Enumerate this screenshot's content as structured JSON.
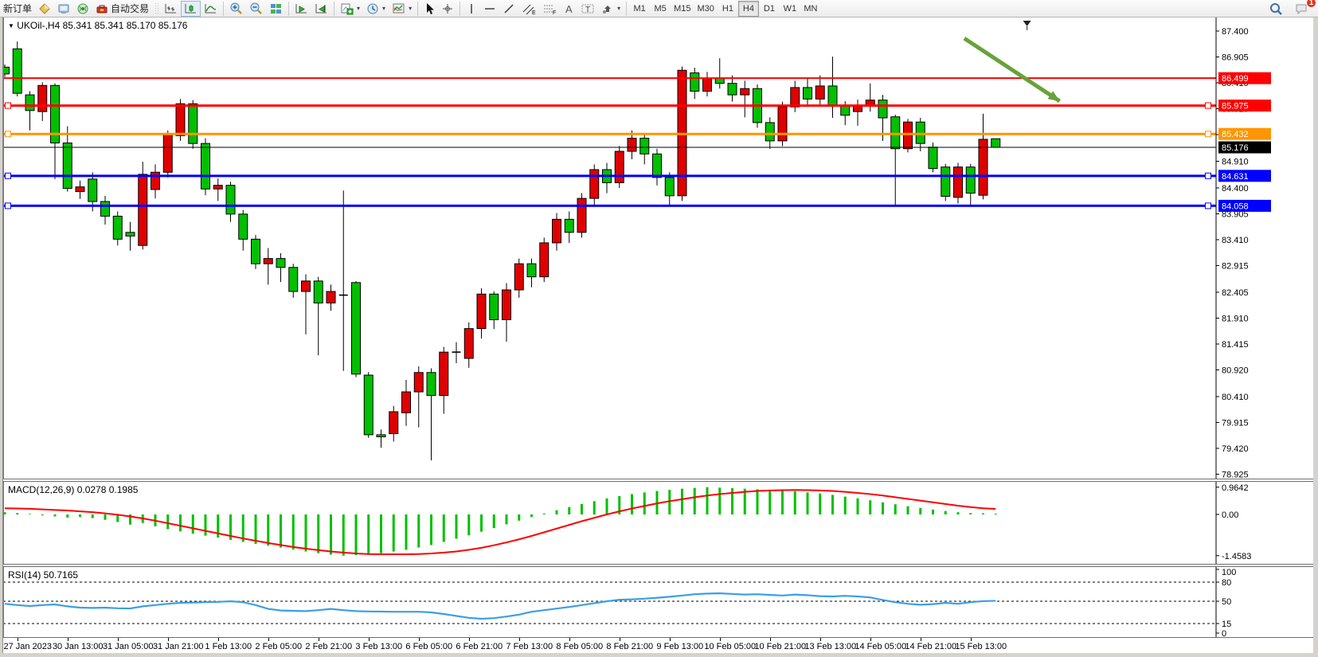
{
  "toolbar": {
    "new_order_label": "新订单",
    "auto_trading_label": "自动交易",
    "timeframes": [
      "M1",
      "M5",
      "M15",
      "M30",
      "H1",
      "H4",
      "D1",
      "W1",
      "MN"
    ],
    "active_timeframe": "H4",
    "notification_count": "1",
    "icons": [
      "diamond-icon",
      "terminal-icon",
      "signal-icon",
      "toolbox-icon",
      "bar-chart-icon",
      "candlestick-icon",
      "line-chart-icon",
      "zoom-in-icon",
      "zoom-out-icon",
      "tile-windows-icon",
      "profile-left-icon",
      "profile-right-icon",
      "new-chart-icon",
      "period-clock-icon",
      "indicators-icon",
      "cursor-icon",
      "crosshair-icon",
      "vertical-line-icon",
      "horizontal-line-icon",
      "trendline-icon",
      "channel-icon",
      "fibonacci-icon",
      "text-icon",
      "label-icon",
      "arrows-icon",
      "search-icon",
      "chat-bubble-icon"
    ]
  },
  "chart": {
    "header_symbol": "UKOil-,H4",
    "header_ohlc": "85.341 85.341 85.170 85.176",
    "open": "85.341",
    "high": "85.341",
    "low": "85.170",
    "close": "85.176"
  },
  "indicators": {
    "macd_label": "MACD(12,26,9) 0.0278 0.1985",
    "rsi_label": "RSI(14) 50.7165"
  },
  "chart_data": [
    {
      "type": "candlestick",
      "title": "UKOil-,H4",
      "color_note": "red = bullish (up), green = bearish (down), black = doji (Chinese color convention)",
      "bull_color": "#e00000",
      "bear_color": "#00c000",
      "doji_color": "#000000",
      "price_axis_ticks": [
        "87.400",
        "86.905",
        "86.410",
        "85.915",
        "85.420",
        "84.910",
        "84.400",
        "83.905",
        "83.410",
        "82.915",
        "82.405",
        "81.910",
        "81.415",
        "80.920",
        "80.410",
        "79.915",
        "79.420",
        "78.925"
      ],
      "time_labels": [
        "27 Jan 2023",
        "30 Jan 13:00",
        "31 Jan 05:00",
        "31 Jan 21:00",
        "1 Feb 13:00",
        "2 Feb 05:00",
        "2 Feb 21:00",
        "3 Feb 13:00",
        "6 Feb 05:00",
        "6 Feb 21:00",
        "7 Feb 13:00",
        "8 Feb 05:00",
        "8 Feb 21:00",
        "9 Feb 13:00",
        "10 Feb 05:00",
        "10 Feb 21:00",
        "13 Feb 13:00",
        "14 Feb 05:00",
        "14 Feb 21:00",
        "15 Feb 13:00"
      ],
      "current_price": 85.176,
      "hlines": [
        {
          "price": 86.499,
          "color": "#ff0000",
          "width": 2,
          "markers": false
        },
        {
          "price": 85.975,
          "color": "#ff0000",
          "width": 3,
          "markers": true
        },
        {
          "price": 85.432,
          "color": "#ff9500",
          "width": 3,
          "markers": true
        },
        {
          "price": 84.631,
          "color": "#0000ff",
          "width": 3,
          "markers": true
        },
        {
          "price": 84.058,
          "color": "#0000ff",
          "width": 3,
          "markers": true
        }
      ],
      "arrow_annotation": {
        "color": "#67a23b",
        "from": {
          "bar": 76.5,
          "price": 87.26
        },
        "to": {
          "bar": 84.1,
          "price": 86.06
        }
      },
      "shift_marker_bar": 81.5,
      "candles_ohlc": [
        [
          86.71,
          86.76,
          86.52,
          86.58
        ],
        [
          87.06,
          87.2,
          86.15,
          86.21
        ],
        [
          86.18,
          86.25,
          85.5,
          85.88
        ],
        [
          85.86,
          86.42,
          85.68,
          86.36
        ],
        [
          86.36,
          86.4,
          84.57,
          85.26
        ],
        [
          85.26,
          85.58,
          84.33,
          84.39
        ],
        [
          84.33,
          84.54,
          84.19,
          84.42
        ],
        [
          84.57,
          84.7,
          83.95,
          84.14
        ],
        [
          84.14,
          84.25,
          83.7,
          83.86
        ],
        [
          83.86,
          83.95,
          83.3,
          83.42
        ],
        [
          83.55,
          83.75,
          83.2,
          83.48
        ],
        [
          83.3,
          84.9,
          83.22,
          84.66
        ],
        [
          84.37,
          84.85,
          84.2,
          84.7
        ],
        [
          84.7,
          85.5,
          84.6,
          85.43
        ],
        [
          85.4,
          86.1,
          85.3,
          86.01
        ],
        [
          86.01,
          86.08,
          85.15,
          85.25
        ],
        [
          85.25,
          85.35,
          84.26,
          84.38
        ],
        [
          84.38,
          84.58,
          84.15,
          84.45
        ],
        [
          84.45,
          84.52,
          83.75,
          83.9
        ],
        [
          83.9,
          83.98,
          83.2,
          83.42
        ],
        [
          83.42,
          83.5,
          82.85,
          82.95
        ],
        [
          82.95,
          83.25,
          82.55,
          83.05
        ],
        [
          83.05,
          83.15,
          82.6,
          82.88
        ],
        [
          82.88,
          82.95,
          82.3,
          82.42
        ],
        [
          82.42,
          82.75,
          81.6,
          82.62
        ],
        [
          82.62,
          82.7,
          81.2,
          82.2
        ],
        [
          82.2,
          82.55,
          82.05,
          82.42
        ],
        [
          82.35,
          84.35,
          80.9,
          82.35
        ],
        [
          82.59,
          82.62,
          80.78,
          80.84
        ],
        [
          80.82,
          80.88,
          79.62,
          79.68
        ],
        [
          79.68,
          79.78,
          79.43,
          79.64
        ],
        [
          79.7,
          80.23,
          79.55,
          80.12
        ],
        [
          80.1,
          80.73,
          79.85,
          80.5
        ],
        [
          80.5,
          80.99,
          79.82,
          80.87
        ],
        [
          80.87,
          80.95,
          79.19,
          80.43
        ],
        [
          80.43,
          81.36,
          80.08,
          81.26
        ],
        [
          81.26,
          81.45,
          81.05,
          81.26
        ],
        [
          81.14,
          81.83,
          80.96,
          81.71
        ],
        [
          81.71,
          82.48,
          81.52,
          82.37
        ],
        [
          82.37,
          82.42,
          81.7,
          81.88
        ],
        [
          81.88,
          82.58,
          81.46,
          82.45
        ],
        [
          82.45,
          83.05,
          82.3,
          82.95
        ],
        [
          82.95,
          83.05,
          82.5,
          82.7
        ],
        [
          82.7,
          83.45,
          82.6,
          83.35
        ],
        [
          83.35,
          83.92,
          83.2,
          83.8
        ],
        [
          83.8,
          83.95,
          83.35,
          83.55
        ],
        [
          83.55,
          84.3,
          83.45,
          84.2
        ],
        [
          84.2,
          84.85,
          84.05,
          84.75
        ],
        [
          84.75,
          84.88,
          84.3,
          84.5
        ],
        [
          84.5,
          85.2,
          84.4,
          85.1
        ],
        [
          85.1,
          85.5,
          84.95,
          85.35
        ],
        [
          85.35,
          85.45,
          84.85,
          85.05
        ],
        [
          85.05,
          85.15,
          84.45,
          84.6
        ],
        [
          84.6,
          84.7,
          84.05,
          84.25
        ],
        [
          84.25,
          86.72,
          84.15,
          86.65
        ],
        [
          86.6,
          86.7,
          86.1,
          86.25
        ],
        [
          86.25,
          86.62,
          86.15,
          86.5
        ],
        [
          86.5,
          86.88,
          86.3,
          86.4
        ],
        [
          86.4,
          86.55,
          86.05,
          86.18
        ],
        [
          86.18,
          86.45,
          85.75,
          86.3
        ],
        [
          86.3,
          86.38,
          85.55,
          85.65
        ],
        [
          85.65,
          85.75,
          85.15,
          85.3
        ],
        [
          85.3,
          86.05,
          85.2,
          85.95
        ],
        [
          85.95,
          86.45,
          85.85,
          86.32
        ],
        [
          86.32,
          86.5,
          85.95,
          86.1
        ],
        [
          86.1,
          86.55,
          86.0,
          86.35
        ],
        [
          86.35,
          86.91,
          85.74,
          85.97
        ],
        [
          85.97,
          86.06,
          85.6,
          85.79
        ],
        [
          85.86,
          86.09,
          85.59,
          85.97
        ],
        [
          85.97,
          86.4,
          85.86,
          86.08
        ],
        [
          86.08,
          86.18,
          85.3,
          85.74
        ],
        [
          85.76,
          85.8,
          84.08,
          85.15
        ],
        [
          85.15,
          85.72,
          85.08,
          85.66
        ],
        [
          85.66,
          85.74,
          85.1,
          85.25
        ],
        [
          85.18,
          85.27,
          84.7,
          84.77
        ],
        [
          84.8,
          84.86,
          84.15,
          84.24
        ],
        [
          84.22,
          84.88,
          84.1,
          84.8
        ],
        [
          84.8,
          84.86,
          84.06,
          84.3
        ],
        [
          84.26,
          85.82,
          84.18,
          85.33
        ],
        [
          85.341,
          85.341,
          85.17,
          85.176
        ]
      ]
    },
    {
      "type": "bar",
      "title": "MACD(12,26,9)",
      "main_value": 0.0278,
      "signal_value": 0.1985,
      "axis_labels": [
        "0.9642",
        "0.00",
        "-1.4583"
      ],
      "hist_color": "#00c000",
      "signal_color": "#ff0000",
      "histogram": [
        0.08,
        0.05,
        0.02,
        -0.03,
        -0.07,
        -0.11,
        -0.09,
        -0.13,
        -0.19,
        -0.27,
        -0.36,
        -0.3,
        -0.42,
        -0.52,
        -0.6,
        -0.68,
        -0.75,
        -0.82,
        -0.9,
        -0.97,
        -1.04,
        -1.1,
        -1.17,
        -1.24,
        -1.31,
        -1.37,
        -1.42,
        -1.4583,
        -1.44,
        -1.41,
        -1.37,
        -1.31,
        -1.25,
        -1.17,
        -1.08,
        -0.97,
        -0.86,
        -0.74,
        -0.61,
        -0.48,
        -0.35,
        -0.22,
        -0.09,
        0.03,
        0.15,
        0.26,
        0.37,
        0.47,
        0.57,
        0.65,
        0.72,
        0.78,
        0.83,
        0.87,
        0.91,
        0.94,
        0.9642,
        0.95,
        0.93,
        0.91,
        0.89,
        0.87,
        0.85,
        0.82,
        0.78,
        0.74,
        0.69,
        0.63,
        0.57,
        0.5,
        0.43,
        0.36,
        0.29,
        0.23,
        0.17,
        0.12,
        0.08,
        0.05,
        0.04,
        0.0278
      ],
      "signal": [
        0.22,
        0.21,
        0.2,
        0.18,
        0.16,
        0.14,
        0.11,
        0.08,
        0.04,
        -0.01,
        -0.07,
        -0.14,
        -0.22,
        -0.31,
        -0.4,
        -0.49,
        -0.58,
        -0.67,
        -0.76,
        -0.85,
        -0.93,
        -1.01,
        -1.08,
        -1.15,
        -1.21,
        -1.26,
        -1.31,
        -1.35,
        -1.38,
        -1.4,
        -1.41,
        -1.41,
        -1.41,
        -1.4,
        -1.38,
        -1.35,
        -1.31,
        -1.25,
        -1.18,
        -1.09,
        -0.99,
        -0.88,
        -0.76,
        -0.63,
        -0.5,
        -0.37,
        -0.24,
        -0.12,
        0.0,
        0.11,
        0.21,
        0.3,
        0.39,
        0.47,
        0.54,
        0.61,
        0.67,
        0.72,
        0.76,
        0.8,
        0.83,
        0.85,
        0.86,
        0.865,
        0.86,
        0.85,
        0.83,
        0.8,
        0.76,
        0.72,
        0.67,
        0.61,
        0.55,
        0.49,
        0.43,
        0.37,
        0.31,
        0.26,
        0.22,
        0.1985
      ]
    },
    {
      "type": "line",
      "title": "RSI(14)",
      "current_value": 50.7165,
      "line_color": "#3b9ee6",
      "axis_labels": [
        {
          "v": 100,
          "label": "100"
        },
        {
          "v": 80,
          "label": "80"
        },
        {
          "v": 50,
          "label": "50"
        },
        {
          "v": 15,
          "label": "15"
        },
        {
          "v": 0,
          "label": "0"
        }
      ],
      "dashed_levels": [
        80,
        50,
        15
      ],
      "values": [
        46,
        44,
        42.5,
        44,
        45,
        42,
        40,
        39.5,
        40,
        39,
        38.7,
        42,
        44,
        46,
        47.5,
        48,
        48.5,
        49,
        50,
        48.5,
        44,
        38,
        35.5,
        35,
        34.5,
        36,
        38,
        36,
        34.5,
        34,
        33.8,
        33.5,
        33.5,
        33.5,
        32.5,
        30,
        27,
        24,
        22.5,
        23.5,
        26,
        29,
        33.5,
        36,
        38.5,
        41,
        44,
        47,
        50,
        52.3,
        53,
        54,
        55.5,
        57,
        59,
        61,
        62,
        62.5,
        61.5,
        60.5,
        61,
        60,
        59,
        60.5,
        59.5,
        58,
        57.5,
        58.5,
        57.5,
        56,
        52,
        48.5,
        46,
        44.5,
        45.5,
        47.5,
        46,
        48.5,
        50.2,
        50.7165
      ]
    }
  ]
}
